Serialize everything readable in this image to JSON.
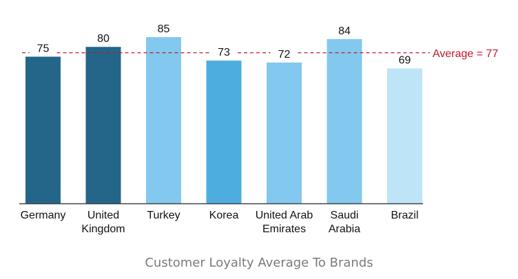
{
  "chart_data": {
    "type": "bar",
    "title": "Customer Loyalty Average To Brands",
    "xlabel": "",
    "ylabel": "",
    "ylim": [
      0,
      85
    ],
    "grid": false,
    "categories": [
      [
        "Germany"
      ],
      [
        "United",
        "Kingdom"
      ],
      [
        "Turkey"
      ],
      [
        "Korea"
      ],
      [
        "United Arab",
        "Emirates"
      ],
      [
        "Saudi",
        "Arabia"
      ],
      [
        "Brazil"
      ]
    ],
    "values": [
      75,
      80,
      85,
      73,
      72,
      84,
      69
    ],
    "value_labels": [
      "75",
      "80",
      "85",
      "73",
      "72",
      "84",
      "69"
    ],
    "bar_colors": [
      "#24668a",
      "#24668a",
      "#83c8ef",
      "#4eaddf",
      "#83c8ef",
      "#83c8ef",
      "#bde4f7"
    ],
    "reference_line": {
      "value": 77,
      "label": "Average = 77",
      "color": "#c0172a",
      "style": "dashed"
    },
    "axis_color": "#444444"
  }
}
